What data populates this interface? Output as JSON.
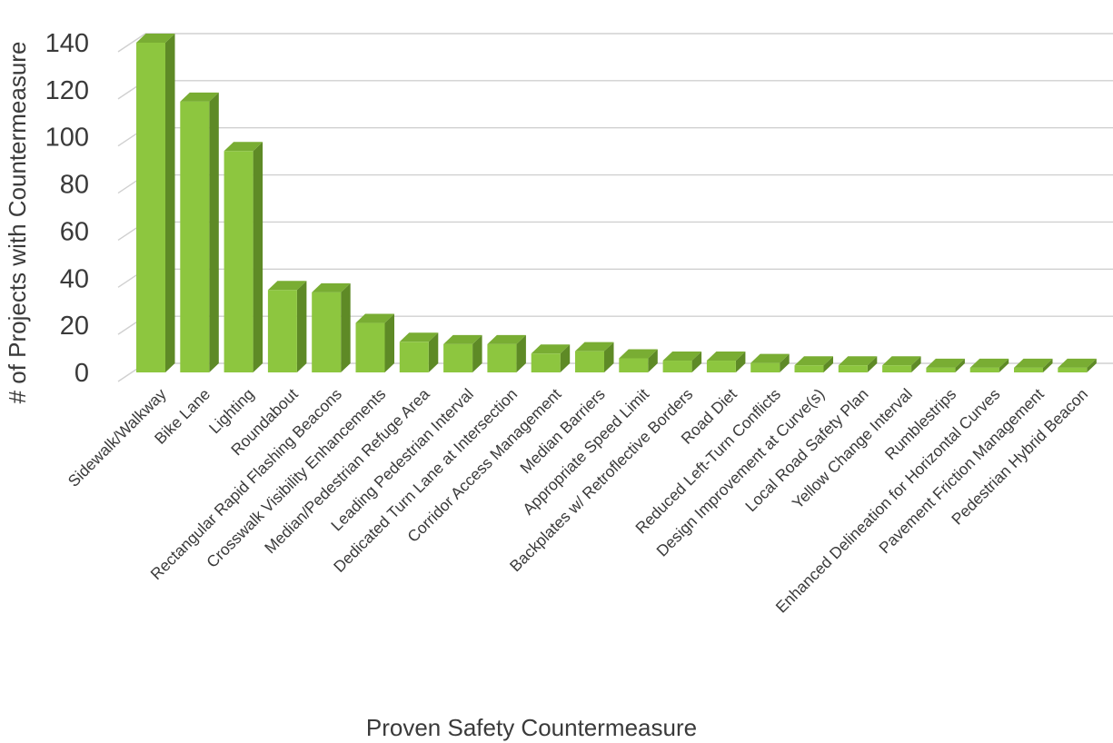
{
  "chart_data": {
    "type": "bar",
    "title": "",
    "xlabel": "Proven Safety Countermeasure",
    "ylabel": "# of Projects with Countermeasure",
    "ylim": [
      0,
      140
    ],
    "yticks": [
      0,
      20,
      40,
      60,
      80,
      100,
      120,
      140
    ],
    "grid": true,
    "legend": "none",
    "bar_color": "#8dc63f",
    "bar_side_color": "#5e8a26",
    "bar_top_color": "#79ad33",
    "categories": [
      "Sidewalk/Walkway",
      "Bike Lane",
      "Lighting",
      "Roundabout",
      "Rectangular Rapid Flashing Beacons",
      "Crosswalk Visibility Enhancements",
      "Median/Pedestrian Refuge Area",
      "Leading Pedestrian Interval",
      "Dedicated Turn Lane at Intersection",
      "Corridor Access Management",
      "Median Barriers",
      "Appropriate Speed Limit",
      "Backplates w/ Retroflective Borders",
      "Road Diet",
      "Reduced Left-Turn Conflicts",
      "Design Improvement at Curve(s)",
      "Local Road Safety Plan",
      "Yellow Change Interval",
      "Rumblestrips",
      "Enhanced Delineation for Horizontal Curves",
      "Pavement Friction Management",
      "Pedestrian Hybrid Beacon"
    ],
    "values": [
      140,
      115,
      94,
      35,
      34,
      21,
      13,
      12,
      12,
      8,
      9,
      6,
      5,
      5,
      4,
      3,
      3,
      3,
      2,
      2,
      2,
      2
    ]
  }
}
